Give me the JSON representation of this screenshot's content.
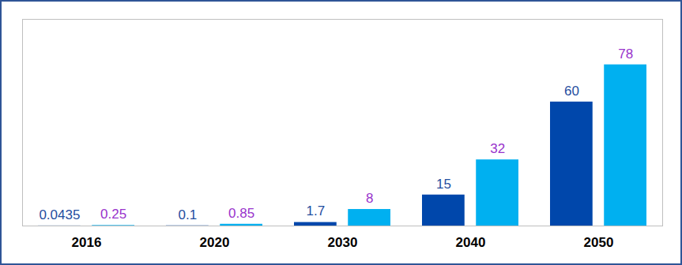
{
  "chart_data": {
    "type": "bar",
    "categories": [
      "2016",
      "2020",
      "2030",
      "2040",
      "2050"
    ],
    "series": [
      {
        "color": "#0047AB",
        "values": [
          0.0435,
          0.1,
          1.7,
          15,
          60
        ]
      },
      {
        "color": "#00B0F0",
        "values": [
          0.25,
          0.85,
          8,
          32,
          78
        ]
      }
    ],
    "ylim": [
      0,
      100
    ],
    "yticks": [],
    "data_labels": true,
    "tick_labels": "x",
    "grid": false
  }
}
